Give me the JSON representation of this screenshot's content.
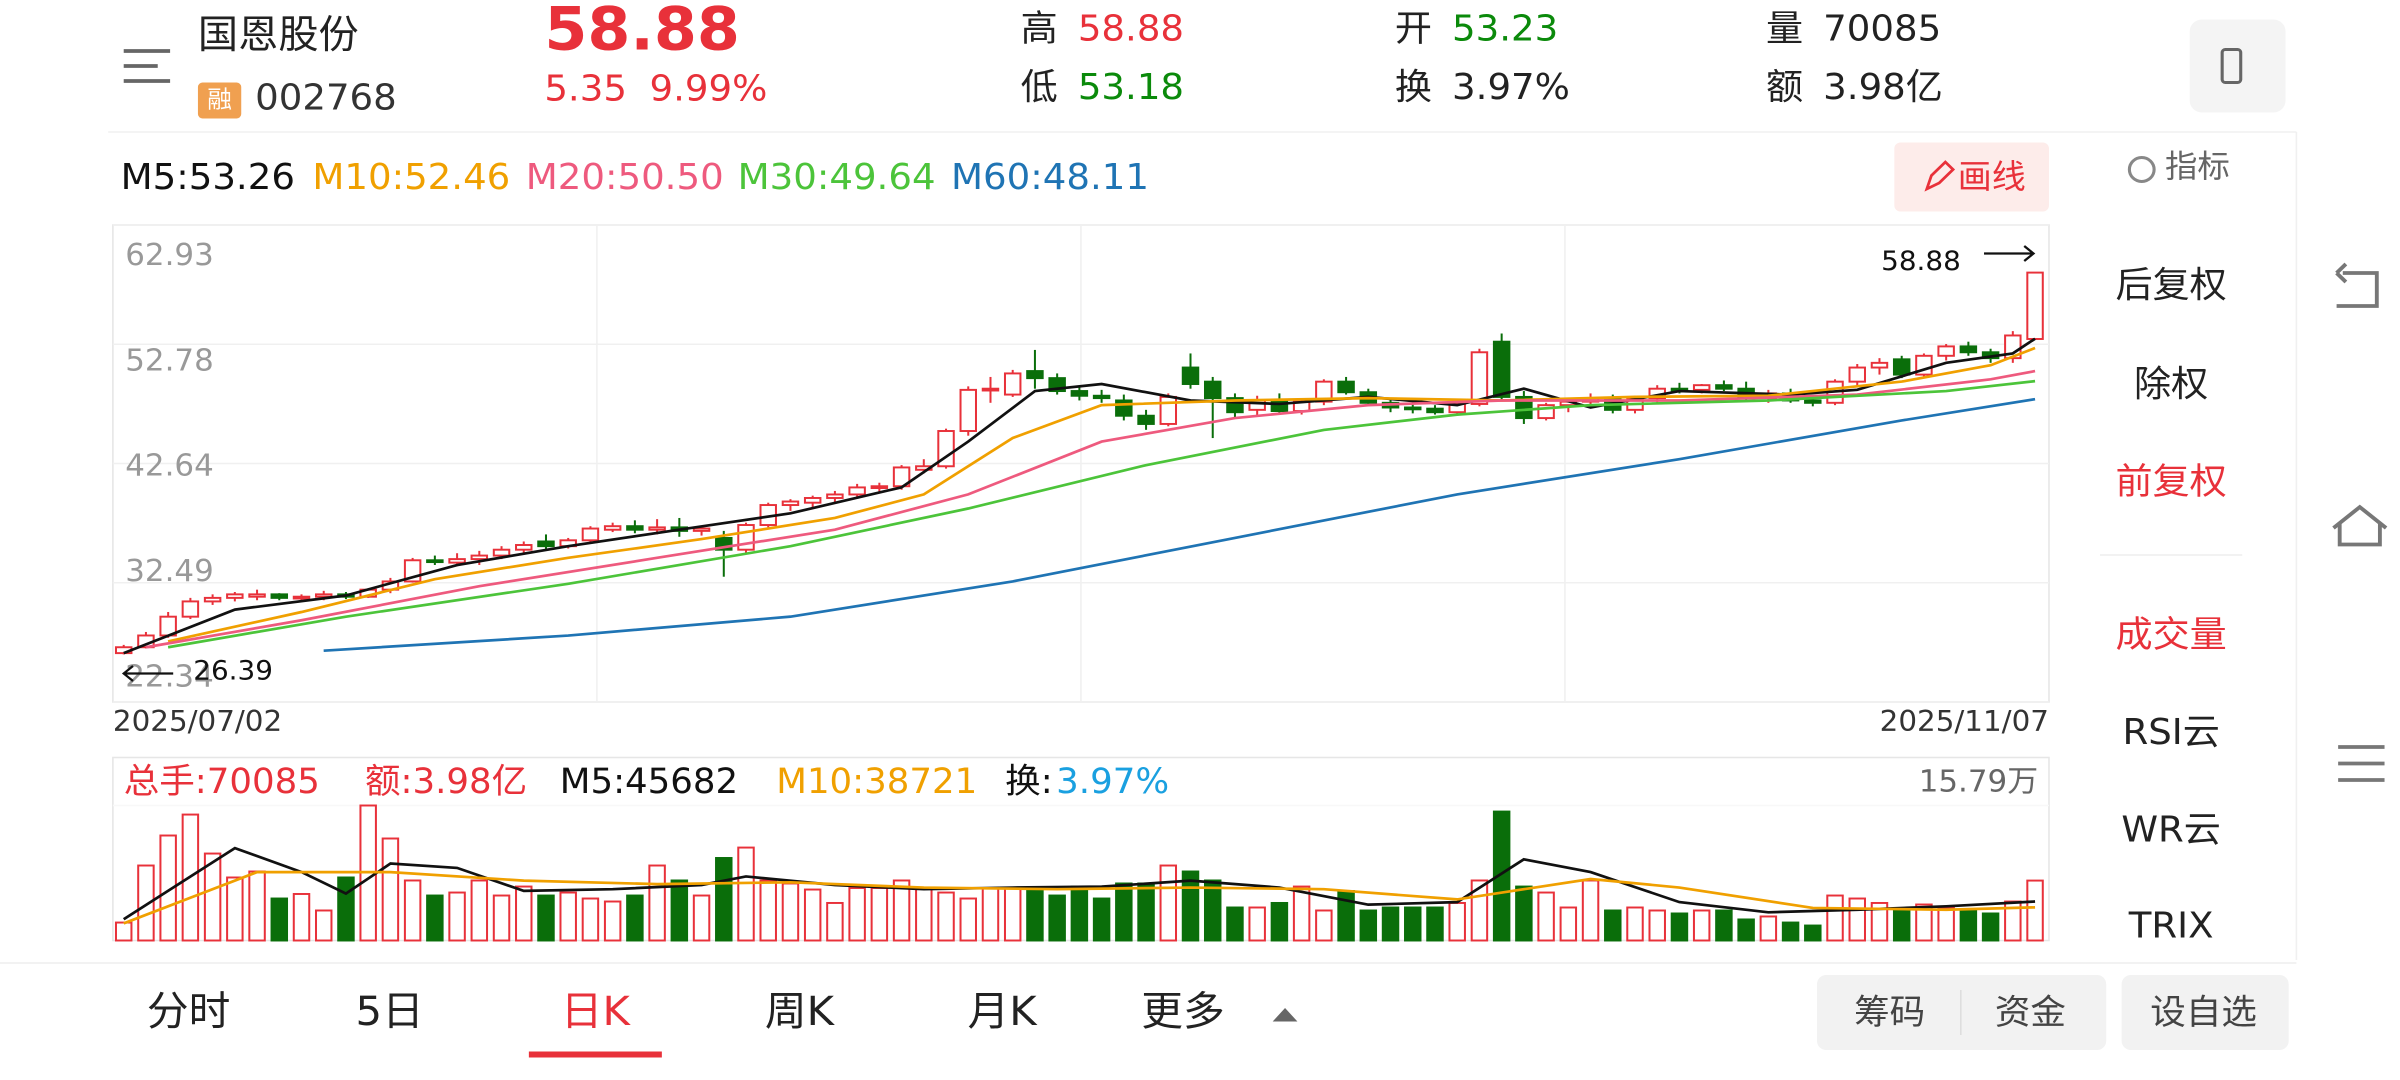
{
  "header": {
    "name": "国恩股份",
    "badge": "融",
    "code": "002768",
    "price": 58.88,
    "change": 5.35,
    "change_pct": "9.99%",
    "quote": [
      {
        "label": "高",
        "value": 58.88
      },
      {
        "label": "低",
        "value": 53.18
      },
      {
        "label": "开",
        "value": 53.23
      },
      {
        "label": "换",
        "value": "3.97%"
      },
      {
        "label": "量",
        "value": 70085
      },
      {
        "label": "额",
        "value": "3.98亿"
      }
    ]
  },
  "draw_button": "画线",
  "chart_data": {
    "type": "candlestick",
    "x_start_label": "2025/07/02",
    "x_end_label": "2025/11/07",
    "ylim": [
      22.34,
      62.93
    ],
    "yticks": [
      22.34,
      32.49,
      42.64,
      52.78,
      62.93
    ],
    "grid": true,
    "max_label": 58.88,
    "min_label": 26.39,
    "up_color": "#e8313a",
    "down_color": "#0a6e0a",
    "ohlc": [
      [
        26.5,
        27.2,
        26.39,
        27.0
      ],
      [
        27.0,
        28.3,
        26.9,
        28.0
      ],
      [
        28.0,
        30.0,
        27.8,
        29.6
      ],
      [
        29.6,
        31.2,
        29.4,
        30.9
      ],
      [
        30.9,
        31.5,
        30.6,
        31.2
      ],
      [
        31.2,
        31.7,
        30.9,
        31.5
      ],
      [
        31.3,
        31.9,
        31.0,
        31.5
      ],
      [
        31.5,
        31.6,
        31.0,
        31.2
      ],
      [
        31.2,
        31.5,
        30.9,
        31.3
      ],
      [
        31.3,
        31.8,
        31.0,
        31.5
      ],
      [
        31.5,
        31.7,
        31.1,
        31.3
      ],
      [
        31.3,
        32.0,
        31.2,
        31.9
      ],
      [
        31.9,
        32.9,
        31.6,
        32.6
      ],
      [
        32.6,
        34.6,
        32.5,
        34.4
      ],
      [
        34.4,
        34.8,
        34.0,
        34.3
      ],
      [
        34.2,
        35.0,
        33.9,
        34.5
      ],
      [
        34.5,
        35.2,
        34.0,
        34.8
      ],
      [
        34.8,
        35.6,
        34.5,
        35.3
      ],
      [
        35.3,
        36.0,
        35.0,
        35.7
      ],
      [
        36.0,
        36.6,
        35.2,
        35.6
      ],
      [
        35.6,
        36.3,
        35.4,
        36.1
      ],
      [
        36.1,
        37.3,
        35.8,
        37.1
      ],
      [
        37.0,
        37.6,
        36.8,
        37.3
      ],
      [
        37.3,
        37.8,
        36.7,
        37.0
      ],
      [
        37.0,
        37.9,
        36.6,
        37.2
      ],
      [
        37.2,
        38.0,
        36.4,
        36.9
      ],
      [
        36.9,
        37.3,
        36.5,
        37.1
      ],
      [
        36.3,
        36.9,
        33.0,
        35.3
      ],
      [
        35.3,
        37.6,
        35.0,
        37.4
      ],
      [
        37.4,
        39.3,
        37.2,
        39.1
      ],
      [
        39.1,
        39.6,
        38.6,
        39.4
      ],
      [
        39.3,
        39.9,
        38.9,
        39.7
      ],
      [
        39.7,
        40.3,
        39.2,
        40.0
      ],
      [
        40.0,
        40.9,
        39.7,
        40.6
      ],
      [
        40.6,
        41.0,
        40.2,
        40.7
      ],
      [
        40.7,
        42.5,
        40.4,
        42.3
      ],
      [
        42.1,
        43.0,
        41.8,
        42.4
      ],
      [
        42.4,
        45.6,
        42.2,
        45.4
      ],
      [
        45.4,
        49.2,
        45.0,
        48.9
      ],
      [
        48.9,
        50.0,
        47.8,
        49.0
      ],
      [
        48.5,
        50.6,
        48.3,
        50.3
      ],
      [
        50.5,
        52.3,
        49.0,
        49.9
      ],
      [
        49.9,
        50.3,
        48.5,
        48.8
      ],
      [
        48.8,
        49.2,
        48.0,
        48.4
      ],
      [
        48.4,
        48.9,
        47.8,
        48.2
      ],
      [
        48.0,
        48.5,
        46.3,
        46.7
      ],
      [
        46.7,
        47.2,
        45.5,
        46.0
      ],
      [
        46.0,
        48.6,
        45.8,
        48.3
      ],
      [
        50.8,
        52.0,
        49.0,
        49.4
      ],
      [
        49.6,
        50.0,
        44.8,
        48.2
      ],
      [
        48.2,
        48.6,
        46.5,
        47.0
      ],
      [
        47.2,
        48.4,
        46.6,
        48.0
      ],
      [
        48.0,
        48.6,
        46.8,
        47.1
      ],
      [
        47.1,
        48.2,
        46.8,
        47.9
      ],
      [
        47.9,
        49.8,
        47.6,
        49.6
      ],
      [
        49.6,
        50.0,
        48.5,
        48.7
      ],
      [
        48.7,
        49.0,
        47.6,
        47.8
      ],
      [
        47.8,
        48.2,
        47.0,
        47.4
      ],
      [
        47.4,
        47.9,
        46.9,
        47.3
      ],
      [
        47.3,
        47.6,
        46.8,
        47.0
      ],
      [
        47.0,
        48.0,
        46.8,
        47.7
      ],
      [
        47.7,
        52.4,
        47.5,
        52.1
      ],
      [
        53.0,
        53.7,
        48.0,
        48.3
      ],
      [
        48.3,
        48.8,
        46.0,
        46.5
      ],
      [
        46.5,
        47.8,
        46.3,
        47.6
      ],
      [
        47.6,
        48.2,
        47.0,
        47.9
      ],
      [
        47.9,
        48.6,
        47.4,
        48.2
      ],
      [
        48.2,
        48.5,
        46.9,
        47.2
      ],
      [
        47.2,
        48.4,
        46.9,
        48.2
      ],
      [
        48.2,
        49.3,
        47.8,
        49.0
      ],
      [
        49.0,
        49.5,
        48.6,
        48.9
      ],
      [
        48.9,
        49.4,
        48.6,
        49.3
      ],
      [
        49.3,
        49.7,
        48.8,
        49.0
      ],
      [
        49.0,
        49.6,
        47.9,
        48.2
      ],
      [
        48.2,
        48.9,
        47.8,
        48.6
      ],
      [
        48.6,
        49.0,
        47.8,
        48.0
      ],
      [
        48.0,
        48.4,
        47.5,
        47.8
      ],
      [
        47.8,
        49.8,
        47.6,
        49.6
      ],
      [
        49.6,
        51.1,
        49.2,
        50.8
      ],
      [
        50.8,
        51.6,
        50.2,
        51.2
      ],
      [
        51.5,
        51.8,
        49.9,
        50.2
      ],
      [
        50.2,
        52.0,
        50.0,
        51.8
      ],
      [
        51.8,
        52.8,
        51.4,
        52.6
      ],
      [
        52.6,
        53.0,
        51.8,
        52.1
      ],
      [
        52.1,
        52.4,
        51.2,
        51.6
      ],
      [
        51.6,
        53.9,
        51.2,
        53.53
      ],
      [
        53.23,
        58.88,
        53.18,
        58.88
      ]
    ],
    "series": [
      {
        "name": "MA5",
        "label": "M5:53.26",
        "color": "#111111",
        "x": [
          0,
          5,
          10,
          15,
          20,
          25,
          30,
          35,
          38,
          41,
          44,
          48,
          52,
          56,
          60,
          63,
          66,
          70,
          75,
          78,
          82,
          85,
          86
        ],
        "values": [
          26.5,
          30.2,
          31.4,
          34.0,
          35.6,
          37.0,
          38.4,
          40.6,
          44.5,
          48.8,
          49.4,
          48.0,
          47.7,
          48.3,
          47.6,
          49.0,
          47.4,
          48.8,
          48.5,
          48.9,
          51.2,
          52.0,
          53.26
        ]
      },
      {
        "name": "MA10",
        "label": "M10:52.46",
        "color": "#f0a000",
        "x": [
          2,
          8,
          14,
          20,
          26,
          32,
          36,
          40,
          44,
          50,
          56,
          62,
          68,
          74,
          80,
          84,
          86
        ],
        "values": [
          27.5,
          30.0,
          32.8,
          34.6,
          36.2,
          38.0,
          40.0,
          44.8,
          47.6,
          48.0,
          48.2,
          48.0,
          48.3,
          48.4,
          49.6,
          51.0,
          52.46
        ]
      },
      {
        "name": "MA20",
        "label": "M20:50.50",
        "color": "#ee5a7e",
        "x": [
          1,
          8,
          16,
          24,
          32,
          38,
          44,
          50,
          56,
          62,
          70,
          78,
          84,
          86
        ],
        "values": [
          27.0,
          29.3,
          32.2,
          34.6,
          37.0,
          40.0,
          44.5,
          46.5,
          47.6,
          48.0,
          48.0,
          48.5,
          49.8,
          50.5
        ]
      },
      {
        "name": "MA30",
        "label": "M30:49.64",
        "color": "#4cc43a",
        "x": [
          2,
          10,
          20,
          30,
          38,
          46,
          54,
          60,
          66,
          74,
          82,
          86
        ],
        "values": [
          27.0,
          29.6,
          32.4,
          35.6,
          38.8,
          42.5,
          45.5,
          46.8,
          47.6,
          48.0,
          48.8,
          49.64
        ]
      },
      {
        "name": "MA60",
        "label": "M60:48.11",
        "color": "#1f74b4",
        "x": [
          9,
          20,
          30,
          40,
          50,
          60,
          70,
          80,
          86
        ],
        "values": [
          26.7,
          28.0,
          29.6,
          32.6,
          36.3,
          40.0,
          43.0,
          46.3,
          48.11
        ]
      }
    ]
  },
  "volume_chart": {
    "type": "bar",
    "header": [
      {
        "text": "总手:70085",
        "color": "#e8313a"
      },
      {
        "text": "额:3.98亿",
        "color": "#e8313a"
      },
      {
        "text": "M5:45682",
        "color": "#111111"
      },
      {
        "text": "M10:38721",
        "color": "#f0a000"
      },
      {
        "text": "换:",
        "color": "#111111"
      },
      {
        "text": "3.97%",
        "color": "#1aa0e0"
      }
    ],
    "ylim": [
      0,
      157900
    ],
    "yticks": [
      {
        "value": 157900,
        "label": "15.79万"
      }
    ],
    "values": [
      21000,
      87700,
      122800,
      147300,
      101700,
      73700,
      80700,
      49100,
      54400,
      35100,
      73700,
      157900,
      119300,
      70200,
      52600,
      56100,
      70200,
      52600,
      63100,
      52600,
      56100,
      49100,
      45600,
      52600,
      87700,
      70200,
      52600,
      96500,
      108700,
      70200,
      66700,
      59600,
      43900,
      61400,
      61400,
      70200,
      61400,
      56100,
      49100,
      61400,
      61400,
      57900,
      52600,
      63100,
      49100,
      66700,
      66700,
      87700,
      80700,
      70200,
      38600,
      38600,
      43900,
      63100,
      35100,
      57900,
      35100,
      38600,
      38600,
      38600,
      43900,
      70200,
      150800,
      63100,
      56100,
      38600,
      70200,
      35100,
      38600,
      35100,
      31600,
      35100,
      35100,
      24600,
      28100,
      21000,
      17500,
      52600,
      49100,
      43900,
      35100,
      42100,
      38600,
      35100,
      31600,
      45600,
      70085
    ],
    "series": [
      {
        "name": "M5",
        "color": "#111111",
        "x": [
          0,
          5,
          8,
          10,
          12,
          15,
          18,
          22,
          26,
          28,
          32,
          36,
          40,
          44,
          48,
          52,
          56,
          60,
          63,
          66,
          70,
          74,
          78,
          82,
          86
        ],
        "values": [
          25000,
          108000,
          80000,
          55000,
          90000,
          85000,
          58000,
          60000,
          65000,
          75000,
          65000,
          60000,
          62000,
          63000,
          70000,
          62000,
          42000,
          45000,
          95000,
          80000,
          45000,
          33000,
          36000,
          40000,
          45682
        ]
      },
      {
        "name": "M10",
        "color": "#f0a000",
        "x": [
          0,
          6,
          12,
          18,
          24,
          30,
          36,
          42,
          48,
          54,
          60,
          66,
          70,
          76,
          82,
          86
        ],
        "values": [
          20000,
          80000,
          80000,
          70000,
          66000,
          68000,
          62000,
          60000,
          62000,
          60000,
          48000,
          72000,
          62000,
          38000,
          36000,
          38721
        ]
      }
    ]
  },
  "side_menu": {
    "title": "指标",
    "items": [
      {
        "text": "后复权",
        "active": false
      },
      {
        "text": "除权",
        "active": false
      },
      {
        "text": "前复权",
        "active": true
      },
      {
        "text": "成交量",
        "active": true
      },
      {
        "text": "RSI云",
        "active": false
      },
      {
        "text": "WR云",
        "active": false
      },
      {
        "text": "TRIX",
        "active": false
      }
    ]
  },
  "tabs": {
    "items": [
      "分时",
      "5日",
      "日K",
      "周K",
      "月K",
      "更多"
    ],
    "active": 2,
    "buttons": [
      "筹码",
      "资金",
      "设自选"
    ]
  }
}
